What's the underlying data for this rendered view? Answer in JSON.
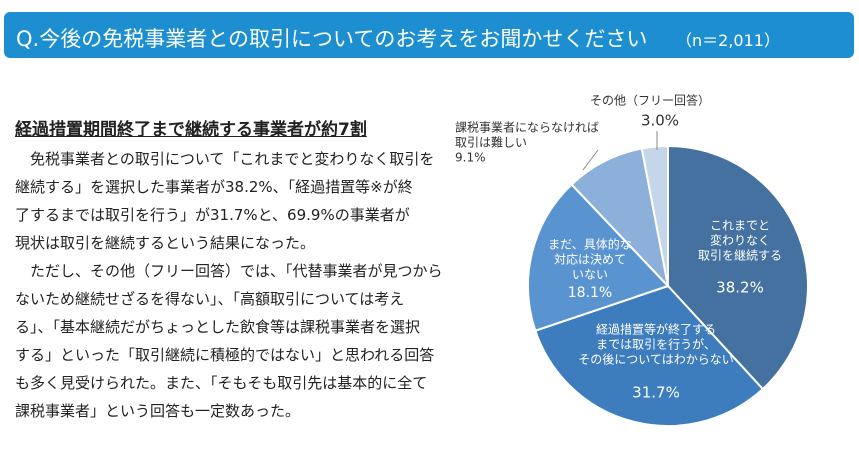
{
  "header": {
    "title": "Q.今後の免税事業者との取引についてのお考えをお聞かせください",
    "note": "（n＝2,011）"
  },
  "article": {
    "heading": "経過措置期間終了まで継続する事業者が約7割",
    "paragraphs": [
      [
        "免税事業者との取引について「これまでと変わりなく取引を",
        "継続する」を選択した事業者が38.2%、「経過措置等※が終",
        "了するまでは取引を行う」が31.7%と、69.9%の事業者が",
        "現状は取引を継続するという結果になった。"
      ],
      [
        "ただし、その他（フリー回答）では、「代替事業者が見つから",
        "ないため継続せざるを得ない」、「高額取引については考え",
        "る」、「基本継続だがちょっとした飲食等は課税事業者を選択",
        "する」といった「取引継続に積極的ではない」と思われる回答",
        "も多く見受けられた。また、「そもそも取引先は基本的に全て",
        "課税事業者」という回答も一定数あった。"
      ]
    ]
  },
  "chart_data": {
    "type": "pie",
    "categories": [
      [
        "これまでと",
        "変わりなく",
        "取引を継続する"
      ],
      [
        "経過措置等が終了する",
        "までは取引を行うが、",
        "その後についてはわからない"
      ],
      [
        "まだ、具体的な",
        "対応は決めて",
        "いない"
      ],
      [
        "課税事業者にならなければ",
        "取引は難しい"
      ],
      [
        "その他（フリー回答）"
      ]
    ],
    "values": [
      38.2,
      31.7,
      18.1,
      9.1,
      3.0
    ],
    "value_labels": [
      "38.2%",
      "31.7%",
      "18.1%",
      "9.1%",
      "3.0%"
    ],
    "colors": [
      "#44719f",
      "#3e7dbd",
      "#5a94d0",
      "#8db0da",
      "#c6d6ea"
    ]
  }
}
